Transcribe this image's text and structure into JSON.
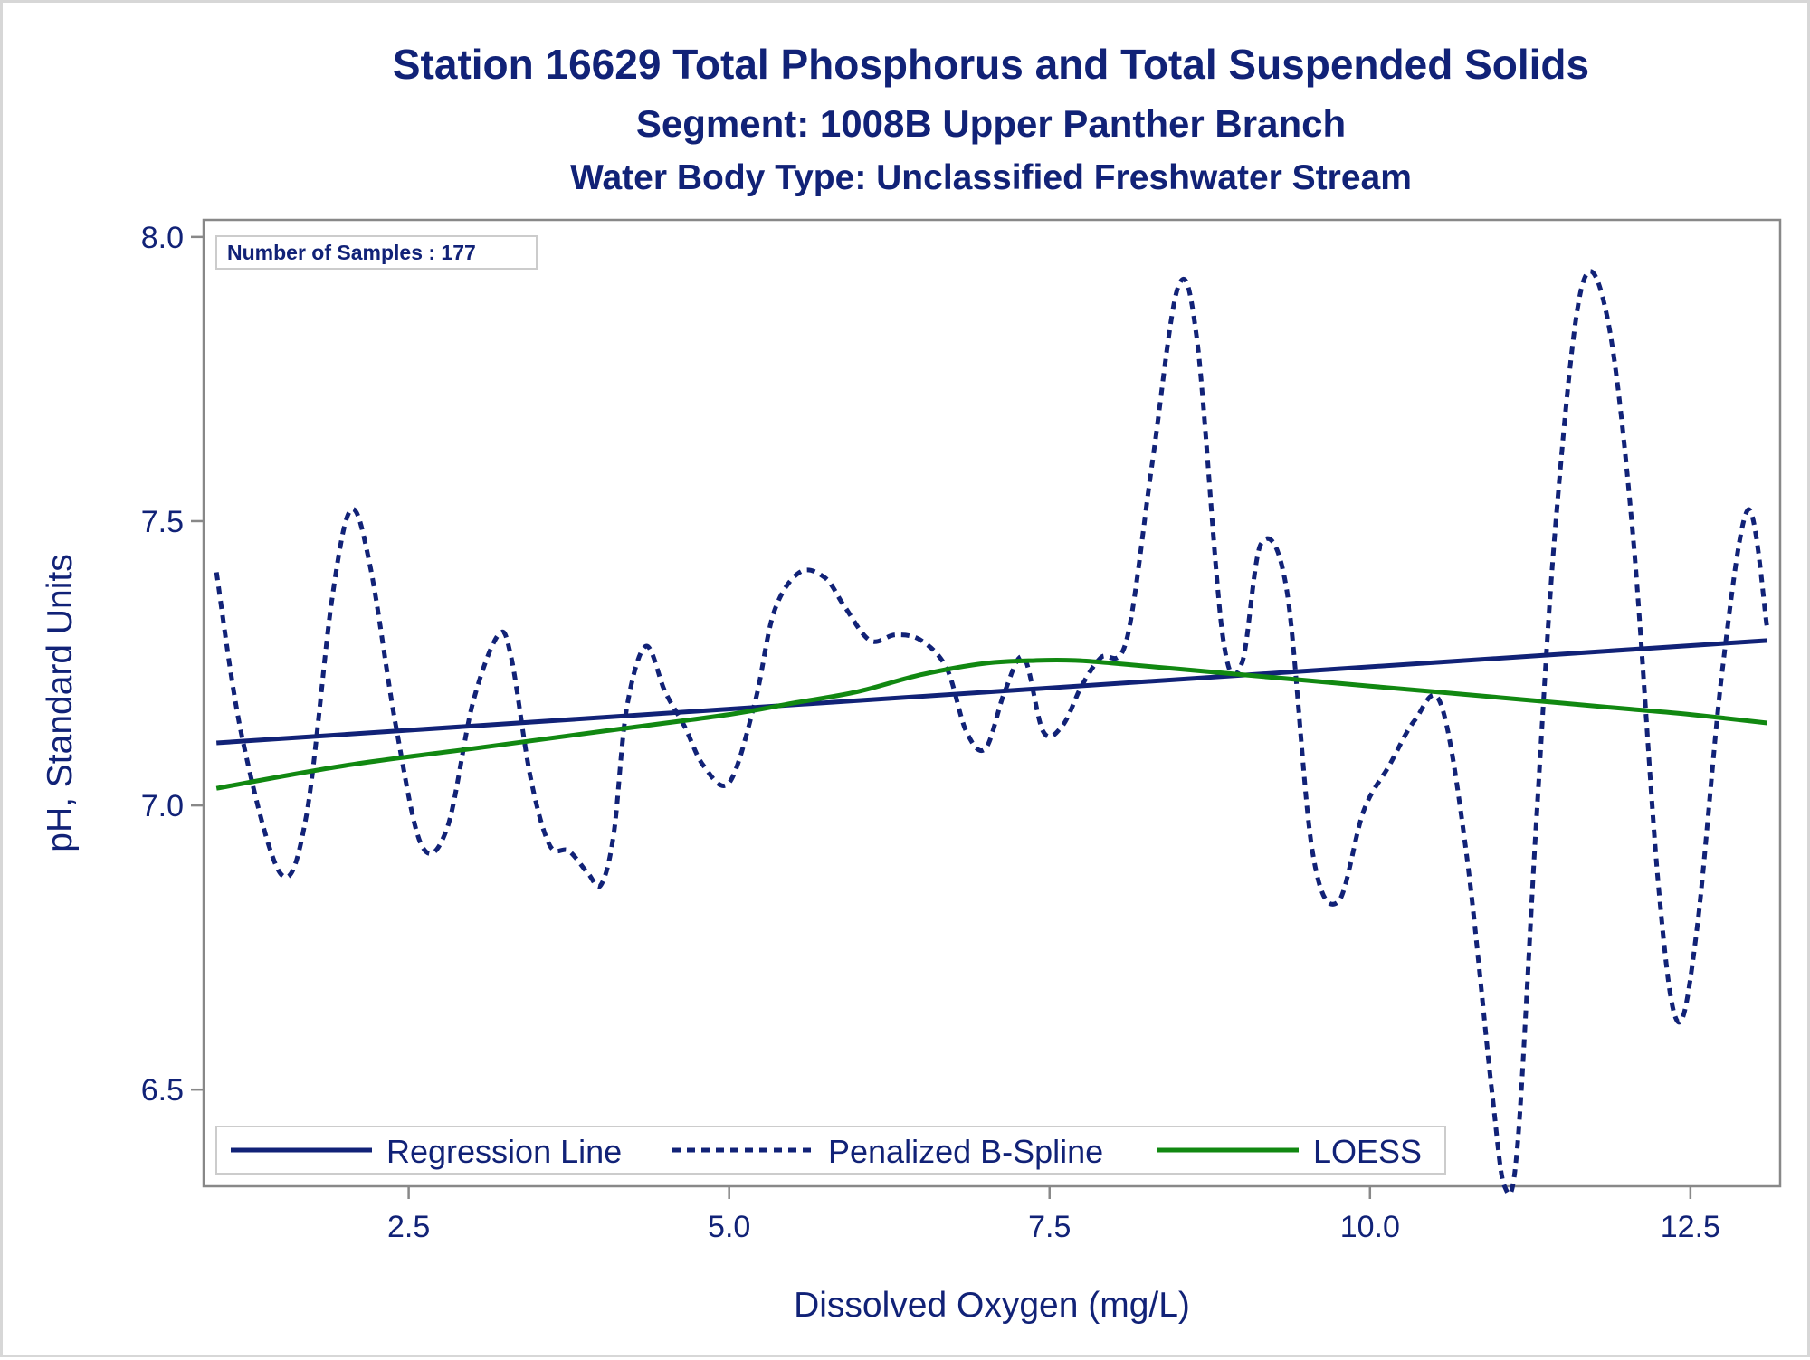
{
  "chart_data": {
    "type": "line",
    "title": "Station 16629  Total Phosphorus and Total Suspended Solids",
    "subtitle": "Segment: 1008B  Upper Panther Branch",
    "subtitle2": "Water Body Type: Unclassified Freshwater Stream",
    "xlabel": "Dissolved Oxygen (mg/L)",
    "ylabel": "pH, Standard Units",
    "xlim": [
      0.9,
      13.2
    ],
    "ylim": [
      6.33,
      8.03
    ],
    "x_ticks": [
      2.5,
      5.0,
      7.5,
      10.0,
      12.5
    ],
    "x_tick_labels": [
      "2.5",
      "5.0",
      "7.5",
      "10.0",
      "12.5"
    ],
    "y_ticks": [
      6.5,
      7.0,
      7.5,
      8.0
    ],
    "y_tick_labels": [
      "6.5",
      "7.0",
      "7.5",
      "8.0"
    ],
    "grid": false,
    "annotation": "Number of Samples : 177",
    "legend": {
      "placement": "bottom-inside"
    },
    "colors": {
      "regression": "#112277",
      "spline": "#112277",
      "loess": "#118811",
      "text": "#112277",
      "axis": "#888888"
    },
    "series": [
      {
        "name": "Regression Line",
        "style": "solid",
        "x": [
          1.0,
          13.1
        ],
        "y": [
          7.11,
          7.29
        ]
      },
      {
        "name": "Penalized B-Spline",
        "style": "dashed",
        "x": [
          1.0,
          1.2,
          1.5,
          1.7,
          1.9,
          2.05,
          2.2,
          2.4,
          2.6,
          2.8,
          3.0,
          3.2,
          3.3,
          3.45,
          3.6,
          3.75,
          3.9,
          4.0,
          4.1,
          4.2,
          4.35,
          4.5,
          4.65,
          4.8,
          5.0,
          5.2,
          5.35,
          5.55,
          5.75,
          5.9,
          6.1,
          6.3,
          6.5,
          6.7,
          6.85,
          7.0,
          7.15,
          7.3,
          7.45,
          7.6,
          7.75,
          7.9,
          8.1,
          8.3,
          8.5,
          8.65,
          8.85,
          9.0,
          9.15,
          9.35,
          9.55,
          9.75,
          9.95,
          10.15,
          10.35,
          10.55,
          10.75,
          10.95,
          11.05,
          11.15,
          11.3,
          11.45,
          11.65,
          11.85,
          12.05,
          12.25,
          12.4,
          12.55,
          12.75,
          12.95,
          13.1
        ],
        "y": [
          7.41,
          7.12,
          6.88,
          6.98,
          7.36,
          7.52,
          7.42,
          7.14,
          6.93,
          6.96,
          7.18,
          7.3,
          7.26,
          7.05,
          6.93,
          6.92,
          6.88,
          6.86,
          6.95,
          7.17,
          7.28,
          7.2,
          7.14,
          7.07,
          7.04,
          7.18,
          7.34,
          7.41,
          7.4,
          7.35,
          7.29,
          7.3,
          7.29,
          7.24,
          7.13,
          7.1,
          7.2,
          7.26,
          7.13,
          7.14,
          7.21,
          7.26,
          7.29,
          7.6,
          7.91,
          7.82,
          7.3,
          7.25,
          7.46,
          7.38,
          6.92,
          6.83,
          6.99,
          7.07,
          7.15,
          7.18,
          6.92,
          6.5,
          6.33,
          6.4,
          6.98,
          7.5,
          7.91,
          7.86,
          7.48,
          6.86,
          6.62,
          6.78,
          7.24,
          7.52,
          7.31
        ]
      },
      {
        "name": "LOESS",
        "style": "solid",
        "x": [
          1.0,
          2.0,
          3.0,
          4.0,
          5.0,
          5.5,
          6.0,
          6.5,
          7.0,
          7.4,
          7.7,
          8.0,
          8.5,
          9.0,
          9.5,
          10.0,
          10.5,
          11.0,
          11.5,
          12.0,
          12.5,
          13.1
        ],
        "y": [
          7.03,
          7.07,
          7.1,
          7.13,
          7.16,
          7.18,
          7.2,
          7.23,
          7.25,
          7.255,
          7.255,
          7.25,
          7.24,
          7.23,
          7.22,
          7.21,
          7.2,
          7.19,
          7.18,
          7.17,
          7.16,
          7.145
        ]
      }
    ]
  }
}
